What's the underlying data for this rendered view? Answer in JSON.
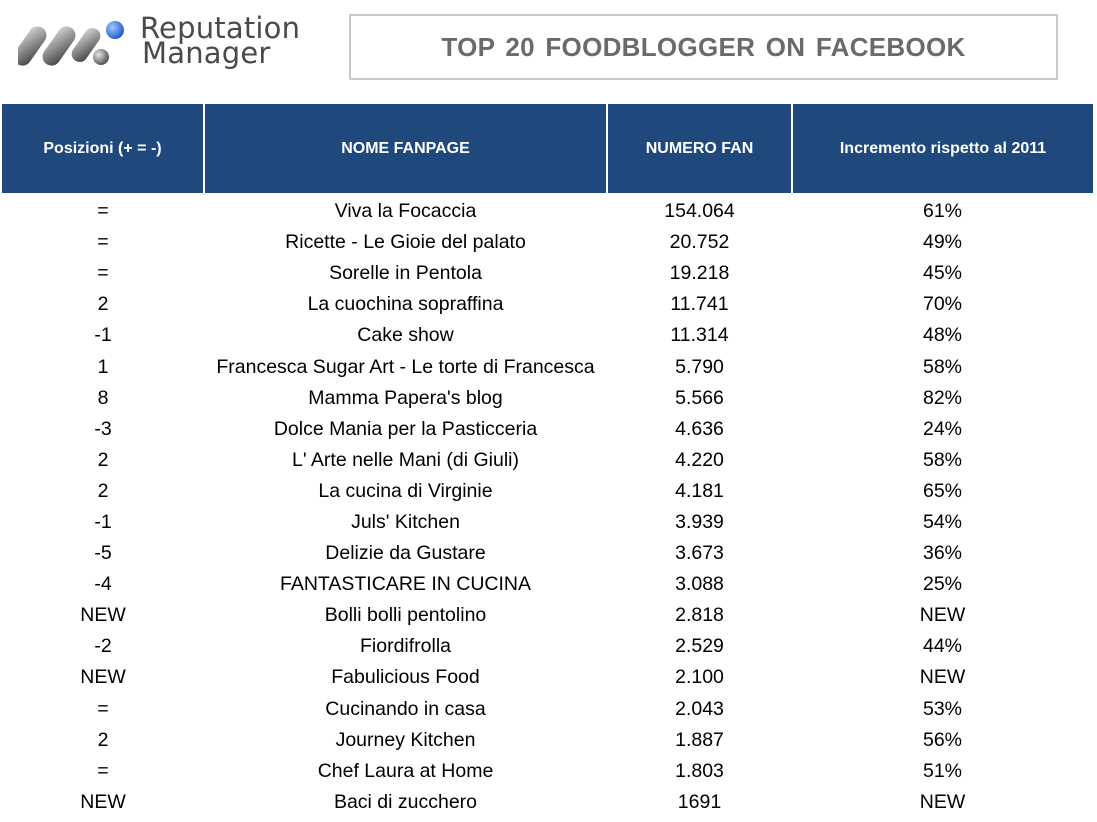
{
  "logo": {
    "line1": "Reputation",
    "line2": "Manager"
  },
  "title": "TOP 20 FOODBLOGGER  ON FACEBOOK",
  "columns": [
    "Posizioni (+ = -)",
    "NOME FANPAGE",
    "NUMERO FAN",
    "Incremento rispetto al 2011"
  ],
  "rows": [
    {
      "pos": "=",
      "name": "Viva la Focaccia",
      "fans": "154.064",
      "inc": "61%"
    },
    {
      "pos": "=",
      "name": "Ricette - Le Gioie del palato",
      "fans": "20.752",
      "inc": "49%"
    },
    {
      "pos": "=",
      "name": "Sorelle in Pentola",
      "fans": "19.218",
      "inc": "45%"
    },
    {
      "pos": "2",
      "name": "La cuochina sopraffina",
      "fans": "11.741",
      "inc": "70%"
    },
    {
      "pos": "-1",
      "name": "Cake show",
      "fans": "11.314",
      "inc": "48%"
    },
    {
      "pos": "1",
      "name": "Francesca Sugar Art - Le torte di Francesca",
      "fans": "5.790",
      "inc": "58%"
    },
    {
      "pos": "8",
      "name": "Mamma Papera's blog",
      "fans": "5.566",
      "inc": "82%"
    },
    {
      "pos": "-3",
      "name": "Dolce Mania per la Pasticceria",
      "fans": "4.636",
      "inc": "24%"
    },
    {
      "pos": "2",
      "name": "L' Arte nelle Mani  (di Giuli)",
      "fans": "4.220",
      "inc": "58%"
    },
    {
      "pos": "2",
      "name": "La cucina di Virginie",
      "fans": "4.181",
      "inc": "65%"
    },
    {
      "pos": "-1",
      "name": "Juls' Kitchen",
      "fans": "3.939",
      "inc": "54%"
    },
    {
      "pos": "-5",
      "name": "Delizie da Gustare",
      "fans": "3.673",
      "inc": "36%"
    },
    {
      "pos": "-4",
      "name": "FANTASTICARE IN CUCINA",
      "fans": "3.088",
      "inc": "25%"
    },
    {
      "pos": "NEW",
      "name": "Bolli bolli pentolino",
      "fans": "2.818",
      "inc": "NEW"
    },
    {
      "pos": "-2",
      "name": "Fiordifrolla",
      "fans": "2.529",
      "inc": "44%"
    },
    {
      "pos": "NEW",
      "name": "Fabulicious Food",
      "fans": "2.100",
      "inc": "NEW"
    },
    {
      "pos": "=",
      "name": "Cucinando in casa",
      "fans": "2.043",
      "inc": "53%"
    },
    {
      "pos": "2",
      "name": "Journey Kitchen",
      "fans": "1.887",
      "inc": "56%"
    },
    {
      "pos": "=",
      "name": "Chef Laura at Home",
      "fans": "1.803",
      "inc": "51%"
    },
    {
      "pos": "NEW",
      "name": "Baci di zucchero",
      "fans": "1691",
      "inc": "NEW"
    }
  ],
  "colors": {
    "header_bg": "#1f497d",
    "title_text": "#6a6a6a",
    "logo_text": "#4a4a4a"
  }
}
